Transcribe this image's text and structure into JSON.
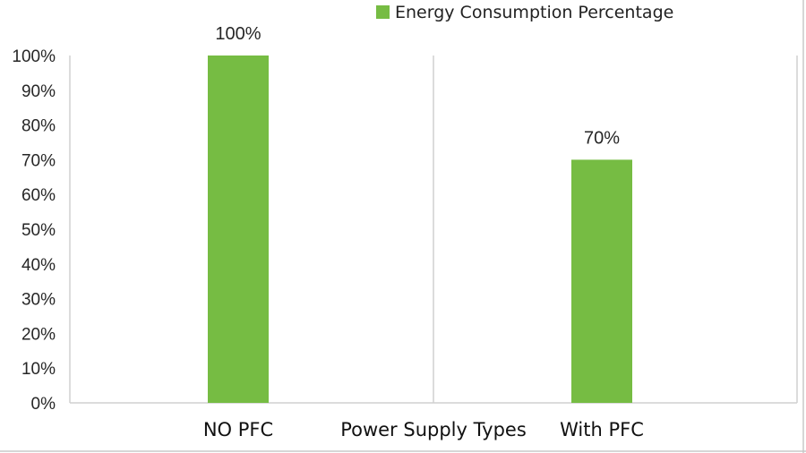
{
  "chart_data": {
    "type": "bar",
    "categories": [
      "NO PFC",
      "With PFC"
    ],
    "series": [
      {
        "name": "Energy Consumption Percentage",
        "values": [
          100,
          70
        ],
        "data_labels": [
          "100%",
          "70%"
        ]
      }
    ],
    "xlabel": "Power Supply Types",
    "ylabel": "",
    "ylim": [
      0,
      100
    ],
    "yticks": [
      "0%",
      "10%",
      "20%",
      "30%",
      "40%",
      "50%",
      "60%",
      "70%",
      "80%",
      "90%",
      "100%"
    ],
    "grid": "vertical category separators",
    "legend": "top-center",
    "colors": {
      "bar": "#76bc43",
      "axis": "#d0d0d0",
      "frame": "#c8c8c8"
    }
  }
}
